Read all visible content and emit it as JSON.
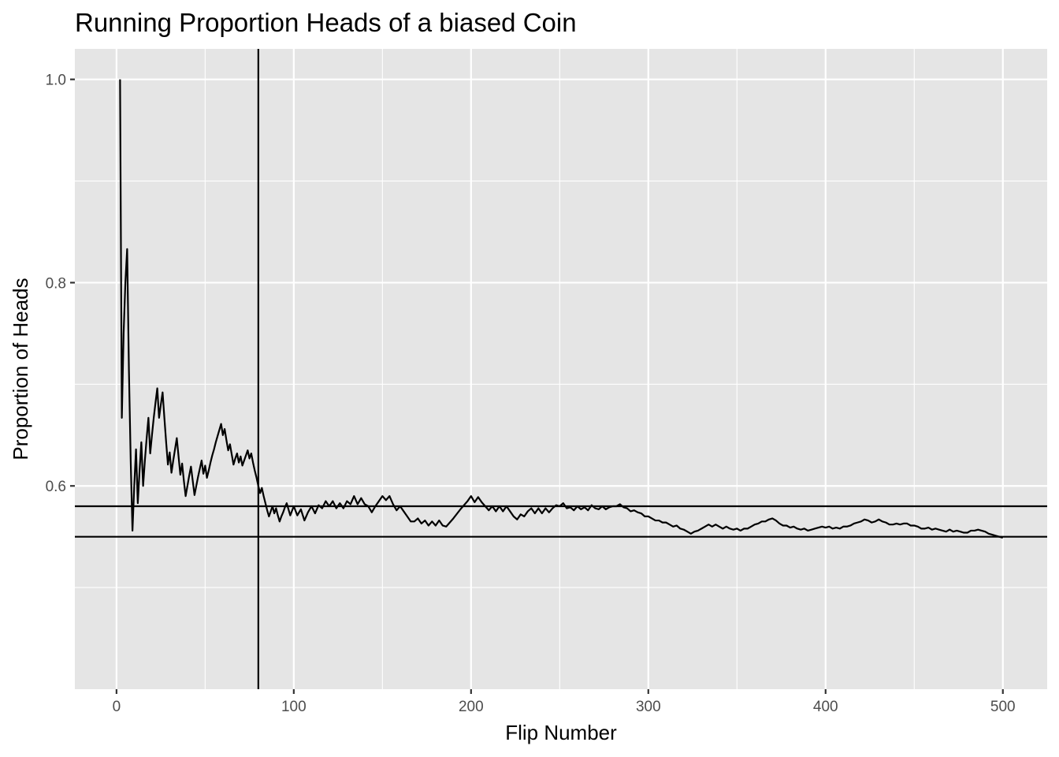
{
  "chart_data": {
    "type": "line",
    "title": "Running Proportion Heads of a biased Coin",
    "xlabel": "Flip Number",
    "ylabel": "Proportion of Heads",
    "xlim": [
      -23.5,
      525
    ],
    "ylim": [
      0.4,
      1.03
    ],
    "x_ticks": [
      0,
      100,
      200,
      300,
      400,
      500
    ],
    "x_tick_labels": [
      "0",
      "100",
      "200",
      "300",
      "400",
      "500"
    ],
    "y_ticks": [
      0.6,
      0.8,
      1.0
    ],
    "y_tick_labels": [
      "0.6",
      "0.8",
      "1.0"
    ],
    "grid": true,
    "colors": {
      "panel": "#e5e5e5",
      "grid": "#ffffff",
      "line": "#000000"
    },
    "reference_lines": {
      "vertical_x": [
        80
      ],
      "horizontal_y": [
        0.58,
        0.55
      ]
    },
    "series": [
      {
        "points": [
          [
            2,
            1.0
          ],
          [
            3,
            0.667
          ],
          [
            4,
            0.75
          ],
          [
            5,
            0.8
          ],
          [
            6,
            0.833
          ],
          [
            7,
            0.714
          ],
          [
            8,
            0.625
          ],
          [
            9,
            0.556
          ],
          [
            10,
            0.6
          ],
          [
            11,
            0.636
          ],
          [
            12,
            0.583
          ],
          [
            13,
            0.615
          ],
          [
            14,
            0.643
          ],
          [
            15,
            0.6
          ],
          [
            16,
            0.625
          ],
          [
            17,
            0.647
          ],
          [
            18,
            0.667
          ],
          [
            19,
            0.632
          ],
          [
            20,
            0.65
          ],
          [
            21,
            0.667
          ],
          [
            22,
            0.682
          ],
          [
            23,
            0.696
          ],
          [
            24,
            0.667
          ],
          [
            25,
            0.68
          ],
          [
            26,
            0.692
          ],
          [
            27,
            0.667
          ],
          [
            28,
            0.643
          ],
          [
            29,
            0.621
          ],
          [
            30,
            0.633
          ],
          [
            31,
            0.613
          ],
          [
            32,
            0.625
          ],
          [
            33,
            0.636
          ],
          [
            34,
            0.647
          ],
          [
            35,
            0.629
          ],
          [
            36,
            0.611
          ],
          [
            37,
            0.622
          ],
          [
            38,
            0.605
          ],
          [
            39,
            0.59
          ],
          [
            40,
            0.6
          ],
          [
            41,
            0.61
          ],
          [
            42,
            0.619
          ],
          [
            43,
            0.605
          ],
          [
            44,
            0.591
          ],
          [
            45,
            0.6
          ],
          [
            46,
            0.609
          ],
          [
            47,
            0.617
          ],
          [
            48,
            0.625
          ],
          [
            49,
            0.612
          ],
          [
            50,
            0.62
          ],
          [
            51,
            0.608
          ],
          [
            52,
            0.615
          ],
          [
            53,
            0.623
          ],
          [
            54,
            0.63
          ],
          [
            55,
            0.636
          ],
          [
            56,
            0.643
          ],
          [
            57,
            0.649
          ],
          [
            58,
            0.655
          ],
          [
            59,
            0.661
          ],
          [
            60,
            0.65
          ],
          [
            61,
            0.656
          ],
          [
            62,
            0.645
          ],
          [
            63,
            0.635
          ],
          [
            64,
            0.641
          ],
          [
            65,
            0.631
          ],
          [
            66,
            0.621
          ],
          [
            67,
            0.627
          ],
          [
            68,
            0.632
          ],
          [
            69,
            0.623
          ],
          [
            70,
            0.629
          ],
          [
            71,
            0.62
          ],
          [
            72,
            0.625
          ],
          [
            73,
            0.63
          ],
          [
            74,
            0.635
          ],
          [
            75,
            0.627
          ],
          [
            76,
            0.632
          ],
          [
            77,
            0.623
          ],
          [
            78,
            0.615
          ],
          [
            79,
            0.608
          ],
          [
            80,
            0.6
          ],
          [
            81,
            0.593
          ],
          [
            82,
            0.598
          ],
          [
            83,
            0.59
          ],
          [
            84,
            0.583
          ],
          [
            85,
            0.576
          ],
          [
            86,
            0.57
          ],
          [
            87,
            0.575
          ],
          [
            88,
            0.58
          ],
          [
            89,
            0.573
          ],
          [
            90,
            0.578
          ],
          [
            91,
            0.571
          ],
          [
            92,
            0.565
          ],
          [
            93,
            0.57
          ],
          [
            94,
            0.574
          ],
          [
            95,
            0.579
          ],
          [
            96,
            0.583
          ],
          [
            97,
            0.577
          ],
          [
            98,
            0.571
          ],
          [
            100,
            0.58
          ],
          [
            102,
            0.571
          ],
          [
            104,
            0.577
          ],
          [
            106,
            0.566
          ],
          [
            108,
            0.574
          ],
          [
            110,
            0.58
          ],
          [
            112,
            0.573
          ],
          [
            114,
            0.581
          ],
          [
            116,
            0.578
          ],
          [
            118,
            0.585
          ],
          [
            120,
            0.58
          ],
          [
            122,
            0.585
          ],
          [
            124,
            0.578
          ],
          [
            126,
            0.583
          ],
          [
            128,
            0.578
          ],
          [
            130,
            0.585
          ],
          [
            132,
            0.582
          ],
          [
            134,
            0.59
          ],
          [
            136,
            0.582
          ],
          [
            138,
            0.588
          ],
          [
            140,
            0.582
          ],
          [
            142,
            0.58
          ],
          [
            144,
            0.574
          ],
          [
            146,
            0.58
          ],
          [
            148,
            0.585
          ],
          [
            150,
            0.59
          ],
          [
            152,
            0.586
          ],
          [
            154,
            0.59
          ],
          [
            156,
            0.582
          ],
          [
            158,
            0.576
          ],
          [
            160,
            0.58
          ],
          [
            162,
            0.575
          ],
          [
            164,
            0.57
          ],
          [
            166,
            0.565
          ],
          [
            168,
            0.565
          ],
          [
            170,
            0.568
          ],
          [
            172,
            0.563
          ],
          [
            174,
            0.566
          ],
          [
            176,
            0.561
          ],
          [
            178,
            0.565
          ],
          [
            180,
            0.561
          ],
          [
            182,
            0.566
          ],
          [
            184,
            0.561
          ],
          [
            186,
            0.56
          ],
          [
            190,
            0.568
          ],
          [
            194,
            0.577
          ],
          [
            198,
            0.585
          ],
          [
            200,
            0.59
          ],
          [
            202,
            0.584
          ],
          [
            204,
            0.589
          ],
          [
            206,
            0.584
          ],
          [
            208,
            0.58
          ],
          [
            210,
            0.576
          ],
          [
            212,
            0.58
          ],
          [
            214,
            0.575
          ],
          [
            216,
            0.58
          ],
          [
            218,
            0.575
          ],
          [
            220,
            0.58
          ],
          [
            222,
            0.575
          ],
          [
            224,
            0.57
          ],
          [
            226,
            0.567
          ],
          [
            228,
            0.572
          ],
          [
            230,
            0.57
          ],
          [
            232,
            0.575
          ],
          [
            234,
            0.578
          ],
          [
            236,
            0.573
          ],
          [
            238,
            0.578
          ],
          [
            240,
            0.573
          ],
          [
            242,
            0.578
          ],
          [
            244,
            0.574
          ],
          [
            246,
            0.578
          ],
          [
            248,
            0.581
          ],
          [
            250,
            0.58
          ],
          [
            252,
            0.583
          ],
          [
            254,
            0.578
          ],
          [
            256,
            0.579
          ],
          [
            258,
            0.576
          ],
          [
            260,
            0.58
          ],
          [
            262,
            0.577
          ],
          [
            264,
            0.579
          ],
          [
            266,
            0.576
          ],
          [
            268,
            0.581
          ],
          [
            270,
            0.578
          ],
          [
            272,
            0.577
          ],
          [
            274,
            0.58
          ],
          [
            276,
            0.577
          ],
          [
            278,
            0.579
          ],
          [
            280,
            0.58
          ],
          [
            282,
            0.58
          ],
          [
            284,
            0.582
          ],
          [
            286,
            0.579
          ],
          [
            288,
            0.578
          ],
          [
            290,
            0.575
          ],
          [
            292,
            0.576
          ],
          [
            294,
            0.574
          ],
          [
            296,
            0.573
          ],
          [
            298,
            0.57
          ],
          [
            300,
            0.57
          ],
          [
            302,
            0.568
          ],
          [
            304,
            0.566
          ],
          [
            306,
            0.566
          ],
          [
            308,
            0.564
          ],
          [
            310,
            0.564
          ],
          [
            312,
            0.562
          ],
          [
            314,
            0.56
          ],
          [
            316,
            0.561
          ],
          [
            318,
            0.558
          ],
          [
            320,
            0.557
          ],
          [
            322,
            0.555
          ],
          [
            324,
            0.553
          ],
          [
            326,
            0.555
          ],
          [
            328,
            0.556
          ],
          [
            330,
            0.558
          ],
          [
            332,
            0.56
          ],
          [
            334,
            0.562
          ],
          [
            336,
            0.56
          ],
          [
            338,
            0.562
          ],
          [
            340,
            0.56
          ],
          [
            342,
            0.558
          ],
          [
            344,
            0.56
          ],
          [
            346,
            0.558
          ],
          [
            348,
            0.557
          ],
          [
            350,
            0.558
          ],
          [
            352,
            0.556
          ],
          [
            354,
            0.558
          ],
          [
            356,
            0.558
          ],
          [
            358,
            0.56
          ],
          [
            360,
            0.562
          ],
          [
            362,
            0.563
          ],
          [
            364,
            0.565
          ],
          [
            366,
            0.565
          ],
          [
            368,
            0.567
          ],
          [
            370,
            0.568
          ],
          [
            372,
            0.566
          ],
          [
            374,
            0.563
          ],
          [
            376,
            0.561
          ],
          [
            378,
            0.561
          ],
          [
            380,
            0.559
          ],
          [
            382,
            0.56
          ],
          [
            384,
            0.558
          ],
          [
            386,
            0.557
          ],
          [
            388,
            0.558
          ],
          [
            390,
            0.556
          ],
          [
            392,
            0.557
          ],
          [
            394,
            0.558
          ],
          [
            396,
            0.559
          ],
          [
            398,
            0.56
          ],
          [
            400,
            0.559
          ],
          [
            402,
            0.56
          ],
          [
            404,
            0.558
          ],
          [
            406,
            0.559
          ],
          [
            408,
            0.558
          ],
          [
            410,
            0.56
          ],
          [
            412,
            0.56
          ],
          [
            414,
            0.561
          ],
          [
            416,
            0.563
          ],
          [
            418,
            0.564
          ],
          [
            420,
            0.565
          ],
          [
            422,
            0.567
          ],
          [
            424,
            0.566
          ],
          [
            426,
            0.564
          ],
          [
            428,
            0.565
          ],
          [
            430,
            0.567
          ],
          [
            432,
            0.565
          ],
          [
            434,
            0.564
          ],
          [
            436,
            0.562
          ],
          [
            438,
            0.562
          ],
          [
            440,
            0.563
          ],
          [
            442,
            0.562
          ],
          [
            444,
            0.563
          ],
          [
            446,
            0.563
          ],
          [
            448,
            0.561
          ],
          [
            450,
            0.561
          ],
          [
            452,
            0.56
          ],
          [
            454,
            0.558
          ],
          [
            456,
            0.558
          ],
          [
            458,
            0.559
          ],
          [
            460,
            0.557
          ],
          [
            462,
            0.558
          ],
          [
            464,
            0.557
          ],
          [
            466,
            0.556
          ],
          [
            468,
            0.555
          ],
          [
            470,
            0.557
          ],
          [
            472,
            0.555
          ],
          [
            474,
            0.556
          ],
          [
            476,
            0.555
          ],
          [
            478,
            0.554
          ],
          [
            480,
            0.554
          ],
          [
            482,
            0.556
          ],
          [
            484,
            0.556
          ],
          [
            486,
            0.557
          ],
          [
            488,
            0.556
          ],
          [
            490,
            0.555
          ],
          [
            492,
            0.553
          ],
          [
            494,
            0.552
          ],
          [
            496,
            0.551
          ],
          [
            498,
            0.55
          ],
          [
            500,
            0.549
          ]
        ]
      }
    ]
  }
}
